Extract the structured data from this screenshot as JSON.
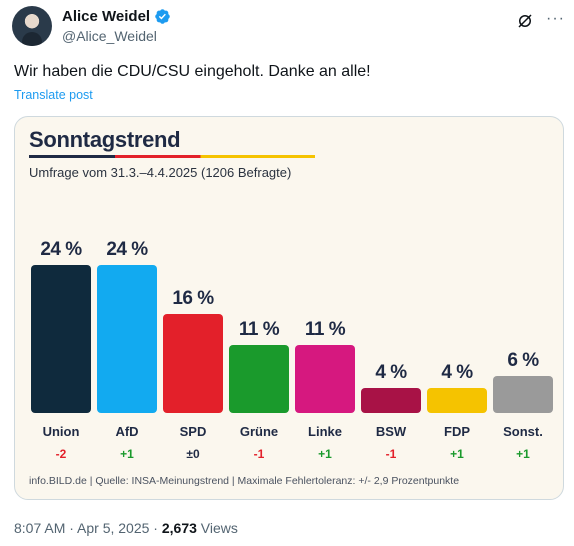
{
  "author": {
    "name": "Alice Weidel",
    "handle": "@Alice_Weidel",
    "avatar_icon": "avatar-photo",
    "verified_icon": "verified-badge-icon"
  },
  "header_icons": [
    "grok-icon",
    "more-icon"
  ],
  "tweet": {
    "text": "Wir haben die CDU/CSU eingeholt. Danke an alle!",
    "translate_label": "Translate post"
  },
  "chart_data": {
    "type": "bar",
    "title": "Sonntagstrend",
    "subtitle": "Umfrage vom 31.3.–4.4.2025 (1206 Befragte)",
    "categories": [
      "Union",
      "AfD",
      "SPD",
      "Grüne",
      "Linke",
      "BSW",
      "FDP",
      "Sonst."
    ],
    "values": [
      24,
      24,
      16,
      11,
      11,
      4,
      4,
      6
    ],
    "value_labels": [
      "24 %",
      "24 %",
      "16 %",
      "11 %",
      "11 %",
      "4 %",
      "4 %",
      "6 %"
    ],
    "changes": [
      "-2",
      "+1",
      "±0",
      "-1",
      "+1",
      "-1",
      "+1",
      "+1"
    ],
    "colors": [
      "#0f2a3d",
      "#12aaf0",
      "#e3202a",
      "#1a9a2c",
      "#d6187f",
      "#a81246",
      "#f5c300",
      "#9a9a9a"
    ],
    "ylim": [
      0,
      24
    ],
    "source": "info.BILD.de | Quelle: INSA-Meinungstrend | Maximale Fehlertoleranz: +/- 2,9 Prozentpunkte"
  },
  "footer": {
    "time": "8:07 AM · Apr 5, 2025 · ",
    "views_count": "2,673",
    "views_label": " Views"
  }
}
